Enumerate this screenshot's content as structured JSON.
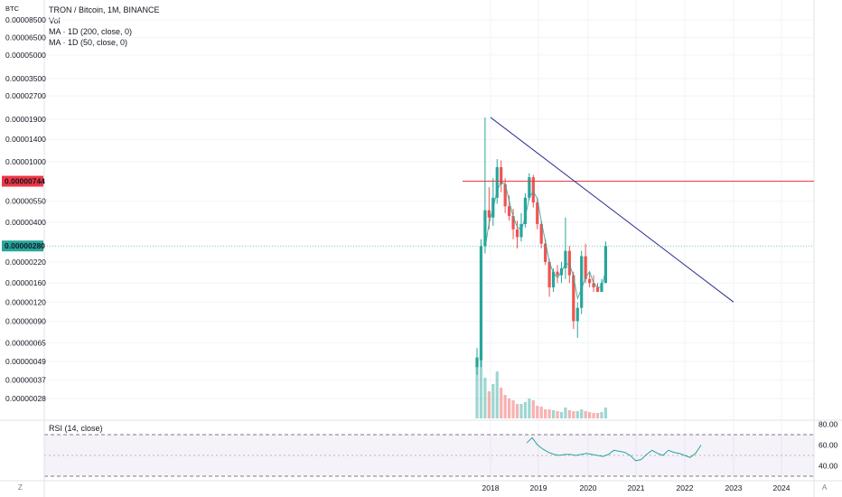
{
  "header": {
    "title": "TRON / Bitcoin, 1M, BINANCE",
    "vol_label": "Vol",
    "ma200_label": "MA · 1D (200, close, 0)",
    "ma50_label": "MA · 1D (50, close, 0)",
    "currency": "BTC"
  },
  "rsi": {
    "label": "RSI (14, close)",
    "ticks": [
      "80.00",
      "60.00",
      "40.00"
    ],
    "values": [
      62,
      67,
      60,
      56,
      53,
      51,
      50,
      51,
      51,
      50,
      51,
      52,
      51,
      50,
      49,
      51,
      55,
      54,
      53,
      50,
      45,
      46,
      51,
      55,
      52,
      50,
      55,
      53,
      52,
      50,
      48,
      52,
      60
    ]
  },
  "controls": {
    "zoom_btn": "Z",
    "auto_btn": "A"
  },
  "chart_data": {
    "type": "candlestick",
    "title": "TRON / Bitcoin, 1M, BINANCE",
    "y_scale": "log",
    "y_unit": "BTC",
    "y_ticks": [
      "0.00008500",
      "0.00006500",
      "0.00005000",
      "0.00003500",
      "0.00002700",
      "0.00001900",
      "0.00001400",
      "0.00001000",
      "0.00000550",
      "0.00000400",
      "0.00000220",
      "0.00000160",
      "0.00000120",
      "0.00000090",
      "0.00000065",
      "0.00000049",
      "0.00000037",
      "0.00000028"
    ],
    "x_ticks": [
      "2018",
      "2019",
      "2020",
      "2021",
      "2022",
      "2023",
      "2024"
    ],
    "price_labels": [
      {
        "value": "0.00000744",
        "color": "#f23645",
        "kind": "horizontal-line"
      },
      {
        "value": "0.00000280",
        "color": "#26a69a",
        "kind": "last-price"
      }
    ],
    "candles_ohlc": [
      [
        4.5e-07,
        6e-07,
        4e-07,
        5.2e-07
      ],
      [
        5e-07,
        3.1e-06,
        4.5e-07,
        2.8e-06
      ],
      [
        2.8e-06,
        1.95e-05,
        2.5e-06,
        4.8e-06
      ],
      [
        4.8e-06,
        6.8e-06,
        3.6e-06,
        4.3e-06
      ],
      [
        4.3e-06,
        7.8e-06,
        3.8e-06,
        5.8e-06
      ],
      [
        5.8e-06,
        1.04e-05,
        5.3e-06,
        9.2e-06
      ],
      [
        9.2e-06,
        1.02e-05,
        6.3e-06,
        7.1e-06
      ],
      [
        7.1e-06,
        7.8e-06,
        4.6e-06,
        5.1e-06
      ],
      [
        5.1e-06,
        6e-06,
        4.1e-06,
        4.4e-06
      ],
      [
        4.4e-06,
        4.9e-06,
        3.1e-06,
        3.6e-06
      ],
      [
        3.6e-06,
        4.1e-06,
        2.7e-06,
        3.2e-06
      ],
      [
        3.2e-06,
        4.6e-06,
        3e-06,
        3.9e-06
      ],
      [
        3.9e-06,
        6.2e-06,
        3.7e-06,
        5.8e-06
      ],
      [
        5.8e-06,
        8.4e-06,
        5.6e-06,
        7.9e-06
      ],
      [
        7.9e-06,
        8.2e-06,
        5e-06,
        5.4e-06
      ],
      [
        5.4e-06,
        5.8e-06,
        3.6e-06,
        3.9e-06
      ],
      [
        3.9e-06,
        4.1e-06,
        2.7e-06,
        2.9e-06
      ],
      [
        2.9e-06,
        3.1e-06,
        2.1e-06,
        2.2e-06
      ],
      [
        2.2e-06,
        2.3e-06,
        1.3e-06,
        1.5e-06
      ],
      [
        1.5e-06,
        2e-06,
        1.4e-06,
        1.9e-06
      ],
      [
        1.9e-06,
        2.1e-06,
        1.6e-06,
        1.8e-06
      ],
      [
        1.8e-06,
        2.2e-06,
        1.6e-06,
        2e-06
      ],
      [
        2e-06,
        4.3e-06,
        1.7e-06,
        2.6e-06
      ],
      [
        2.6e-06,
        2.8e-06,
        1.6e-06,
        1.8e-06
      ],
      [
        1.8e-06,
        1.9e-06,
        8e-07,
        9e-07
      ],
      [
        9e-07,
        1.2e-06,
        7e-07,
        1.1e-06
      ],
      [
        1.1e-06,
        2.6e-06,
        1e-06,
        2.4e-06
      ],
      [
        2.4e-06,
        2.9e-06,
        1.6e-06,
        1.7e-06
      ],
      [
        1.7e-06,
        1.9e-06,
        1.5e-06,
        1.6e-06
      ],
      [
        1.6e-06,
        1.8e-06,
        1.4e-06,
        1.5e-06
      ],
      [
        1.5e-06,
        1.6e-06,
        1.4e-06,
        1.4e-06
      ],
      [
        1.4e-06,
        1.7e-06,
        1.4e-06,
        1.6e-06
      ],
      [
        1.6e-06,
        3e-06,
        1.6e-06,
        2.8e-06
      ]
    ],
    "horizontal_line": 7.44e-06
  }
}
